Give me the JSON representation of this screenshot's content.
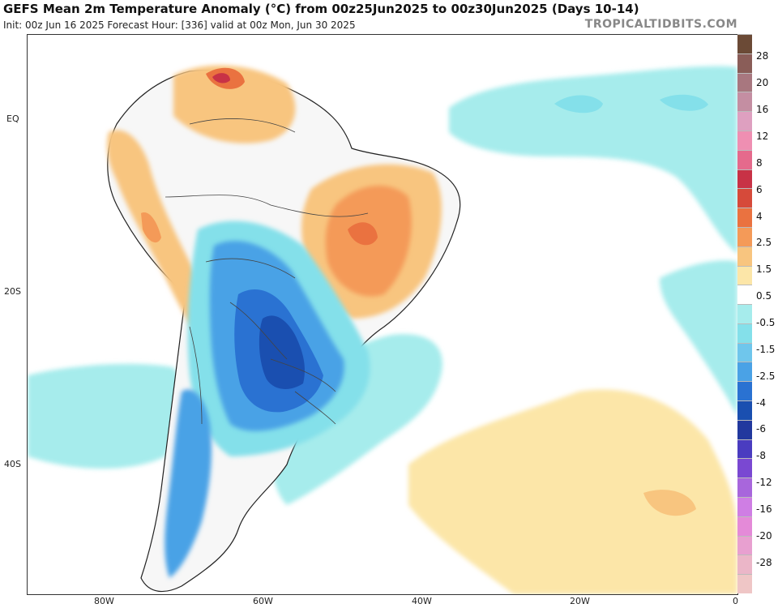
{
  "header": {
    "title": "GEFS Mean 2m Temperature Anomaly (°C) from 00z25Jun2025 to 00z30Jun2025 (Days 10-14)",
    "subtitle": "Init: 00z Jun 16 2025   Forecast Hour: [336]   valid at 00z Mon, Jun 30 2025",
    "watermark": "TROPICALTIDBITS.COM"
  },
  "map": {
    "region": "South America and South Atlantic",
    "lat_labels": [
      "EQ",
      "20S",
      "40S"
    ],
    "lon_labels": [
      "80W",
      "60W",
      "40W",
      "20W",
      "0"
    ],
    "anomaly_regions": [
      {
        "area": "Northern Venezuela",
        "level": "warm",
        "max_anomaly_c": 6
      },
      {
        "area": "Central Brazil",
        "level": "warm",
        "max_anomaly_c": 4
      },
      {
        "area": "Andes, Peru-Bolivia",
        "level": "warm",
        "max_anomaly_c": 4
      },
      {
        "area": "Paraguay, Northern Argentina, Southern Brazil, Uruguay",
        "level": "cold",
        "min_anomaly_c": -6
      },
      {
        "area": "Southern Andes Argentina-Chile",
        "level": "cold",
        "min_anomaly_c": -4
      },
      {
        "area": "Equatorial Atlantic",
        "level": "cool",
        "min_anomaly_c": -2.5
      },
      {
        "area": "South Atlantic near 40S",
        "level": "slightly warm",
        "max_anomaly_c": 1.5
      }
    ]
  },
  "colorbar": {
    "labels": [
      "28",
      "20",
      "16",
      "12",
      "8",
      "6",
      "4",
      "2.5",
      "1.5",
      "0.5",
      "-0.5",
      "-1.5",
      "-2.5",
      "-4",
      "-6",
      "-8",
      "-12",
      "-16",
      "-20",
      "-28"
    ],
    "colors": [
      "#6b4a36",
      "#8a5d58",
      "#a8777f",
      "#c48ea2",
      "#dea0c0",
      "#ef8fb2",
      "#e56a8c",
      "#c83246",
      "#d64a3a",
      "#ea7240",
      "#f49a58",
      "#f8c57f",
      "#fce6a8",
      "#ffffff",
      "#a6ecec",
      "#84e0ea",
      "#6fc6ec",
      "#4aa2e6",
      "#2a72d2",
      "#1a4fb0",
      "#22389e",
      "#4a3cc0",
      "#7a48d2",
      "#a866dc",
      "#cf7ee4",
      "#e48ad8",
      "#e8a0d0",
      "#ebb6c8",
      "#efc6c6"
    ]
  }
}
